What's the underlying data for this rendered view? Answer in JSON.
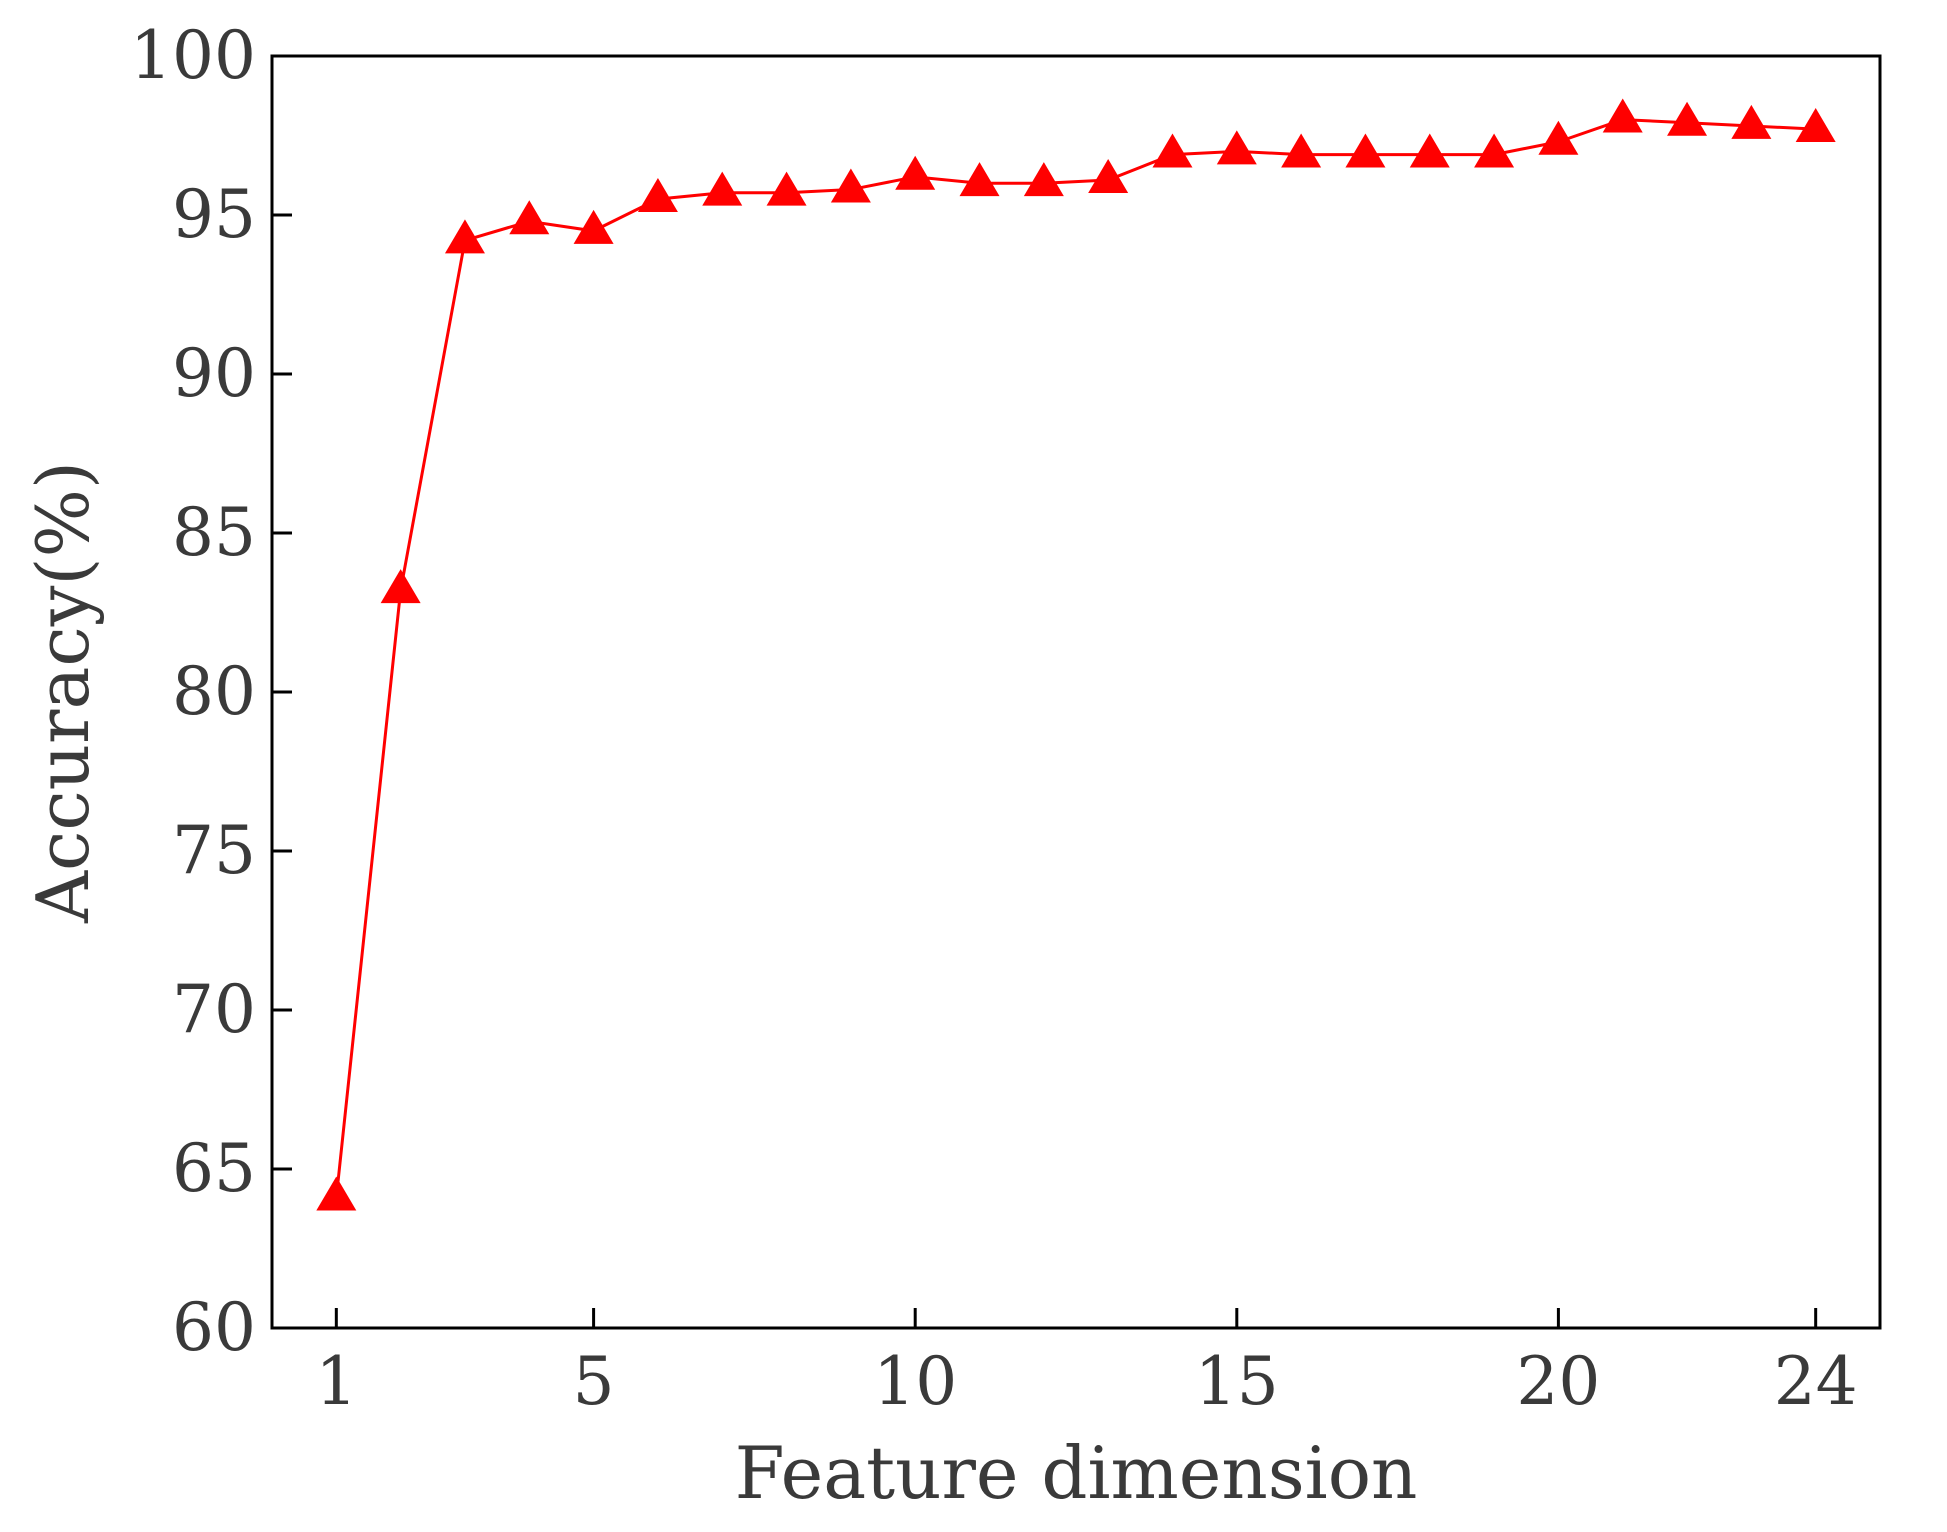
{
  "chart_data": {
    "type": "line",
    "title": "",
    "xlabel": "Feature dimension",
    "ylabel": "Accuracy(%)",
    "xlim": [
      0,
      25
    ],
    "ylim": [
      60,
      100
    ],
    "x_ticks": [
      1,
      5,
      10,
      15,
      20,
      24
    ],
    "y_ticks": [
      60,
      65,
      70,
      75,
      80,
      85,
      90,
      95,
      100
    ],
    "grid": false,
    "legend": "none",
    "series": [
      {
        "color": "#ff0000",
        "marker": "triangle",
        "x": [
          1,
          2,
          3,
          4,
          5,
          6,
          7,
          8,
          9,
          10,
          11,
          12,
          13,
          14,
          15,
          16,
          17,
          18,
          19,
          20,
          21,
          22,
          23,
          24
        ],
        "values": [
          64.1,
          83.2,
          94.2,
          94.8,
          94.5,
          95.5,
          95.7,
          95.7,
          95.8,
          96.2,
          96.0,
          96.0,
          96.1,
          96.9,
          97.0,
          96.9,
          96.9,
          96.9,
          96.9,
          97.3,
          98.0,
          97.9,
          97.8,
          97.7
        ]
      }
    ]
  }
}
